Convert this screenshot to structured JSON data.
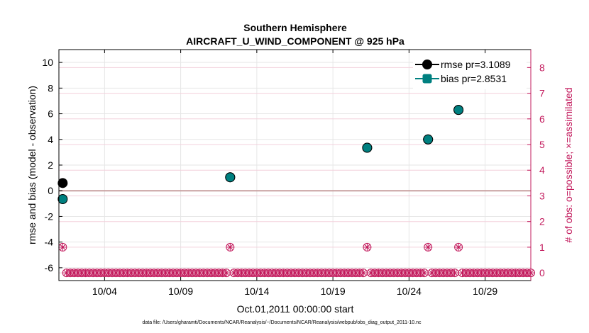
{
  "chart_data": {
    "type": "scatter",
    "title": "Southern Hemisphere",
    "subtitle": "AIRCRAFT_U_WIND_COMPONENT @ 925 hPa",
    "xlabel": "Oct.01,2011 00:00:00 start",
    "ylabel": "rmse and bias (model - observation)",
    "ylabel_right": "# of obs: o=possible; ×=assimilated",
    "footnote": "data file: /Users/gharamti/Documents/NCAR/Reanalysis/~/Documents/NCAR/Reanalysis/webpub/obs_diag_output_2011-10.nc",
    "x_range": [
      "2011-10-01",
      "2011-11-01"
    ],
    "x_ticks": [
      "10/04",
      "10/09",
      "10/14",
      "10/19",
      "10/24",
      "10/29"
    ],
    "x_tick_dates": [
      "2011-10-04",
      "2011-10-09",
      "2011-10-14",
      "2011-10-19",
      "2011-10-24",
      "2011-10-29"
    ],
    "ylim": [
      -7,
      11
    ],
    "y_ticks": [
      "-6",
      "-4",
      "-2",
      "0",
      "2",
      "4",
      "6",
      "8",
      "10"
    ],
    "y_tick_values": [
      -6,
      -4,
      -2,
      0,
      2,
      4,
      6,
      8,
      10
    ],
    "ylim_right": [
      -0.3,
      8.7
    ],
    "y_ticks_right": [
      "0",
      "1",
      "2",
      "3",
      "4",
      "5",
      "6",
      "7",
      "8"
    ],
    "y_tick_values_right": [
      0,
      1,
      2,
      3,
      4,
      5,
      6,
      7,
      8
    ],
    "grid": true,
    "legend_position": "top-right",
    "series": [
      {
        "name": "rmse pr=3.1089",
        "color": "#000000",
        "marker": "circle",
        "points": [
          {
            "x": "2011-10-01 06:00",
            "y": 0.6
          },
          {
            "x": "2011-10-12 06:00",
            "y": 1.05
          },
          {
            "x": "2011-10-21 06:00",
            "y": 3.35
          },
          {
            "x": "2011-10-25 06:00",
            "y": 4.0
          },
          {
            "x": "2011-10-27 06:00",
            "y": 6.3
          }
        ]
      },
      {
        "name": "bias pr=2.8531",
        "color": "#008080",
        "marker": "square",
        "points": [
          {
            "x": "2011-10-01 06:00",
            "y": -0.65
          },
          {
            "x": "2011-10-12 06:00",
            "y": 1.05
          },
          {
            "x": "2011-10-21 06:00",
            "y": 3.35
          },
          {
            "x": "2011-10-25 06:00",
            "y": 4.0
          },
          {
            "x": "2011-10-27 06:00",
            "y": 6.3
          }
        ]
      }
    ],
    "obs_count": {
      "color": "#c2185b",
      "nonzero": [
        {
          "x": "2011-10-01 06:00",
          "y": 1
        },
        {
          "x": "2011-10-12 06:00",
          "y": 1
        },
        {
          "x": "2011-10-21 06:00",
          "y": 1
        },
        {
          "x": "2011-10-25 06:00",
          "y": 1
        },
        {
          "x": "2011-10-27 06:00",
          "y": 1
        }
      ],
      "zero_start": "2011-10-01 06:00",
      "zero_end": "2011-11-01 00:00",
      "interval_hours": 6
    },
    "zero_line": {
      "y": 0,
      "color": "#c8a0a0"
    }
  }
}
